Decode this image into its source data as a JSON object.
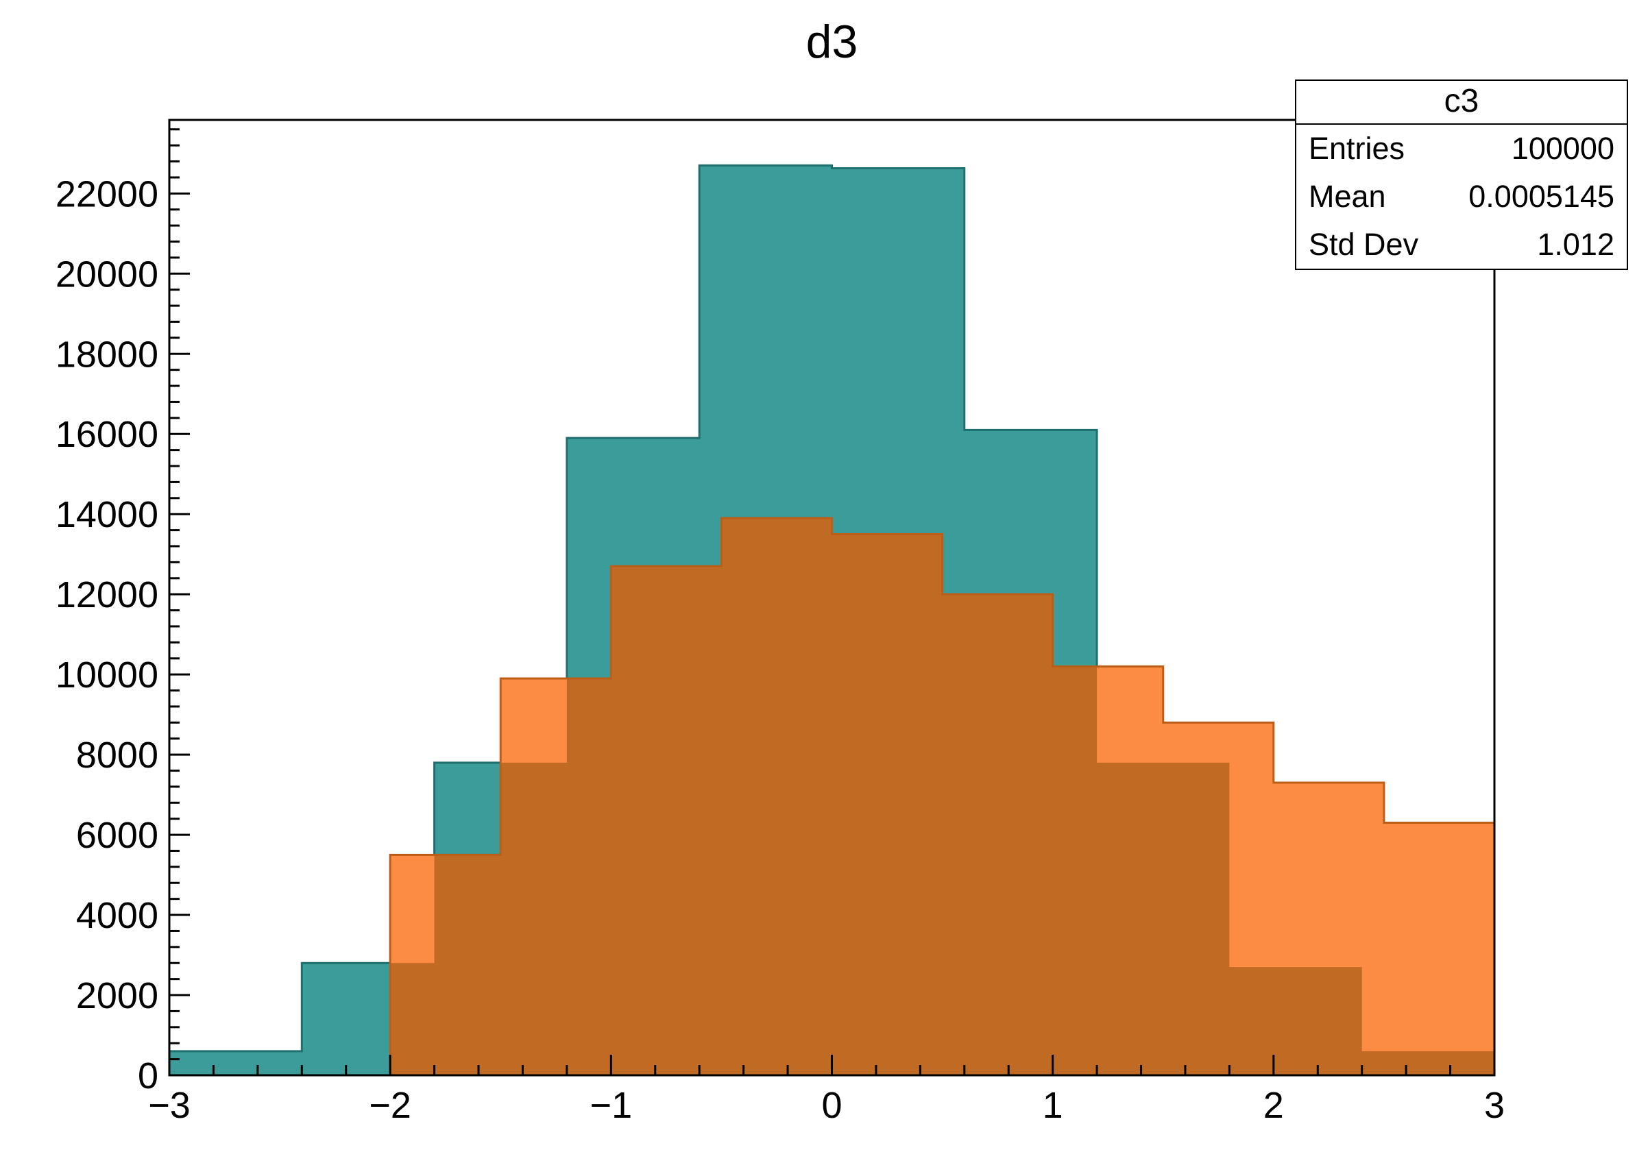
{
  "title": "d3",
  "stats": {
    "title": "c3",
    "rows": [
      {
        "label": "Entries",
        "value": "100000"
      },
      {
        "label": "Mean",
        "value": "0.0005145"
      },
      {
        "label": "Std Dev",
        "value": "1.012"
      }
    ]
  },
  "colors": {
    "teal_fill": "#3b9c99",
    "teal_stroke": "#1e6f6d",
    "orange_fill": "#fc8b43",
    "orange_stroke": "#bc5e18",
    "overlap_fill": "#c06a24",
    "axis": "#000000",
    "background": "#ffffff"
  },
  "chart_data": {
    "type": "bar",
    "subtype": "overlaid-step-histograms",
    "title": "d3",
    "xlabel": "",
    "ylabel": "",
    "xlim": [
      -3,
      3
    ],
    "ylim": [
      0,
      23835
    ],
    "grid": false,
    "legend": "none",
    "x_major_ticks": [
      -3,
      -2,
      -1,
      0,
      1,
      2,
      3
    ],
    "x_tick_labels": [
      "−3",
      "−2",
      "−1",
      "0",
      "1",
      "2",
      "3"
    ],
    "x_minor_step": 0.2,
    "y_major_step": 2000,
    "y_minor_step": 400,
    "y_tick_labels": [
      "0",
      "2000",
      "4000",
      "6000",
      "8000",
      "10000",
      "12000",
      "14000",
      "16000",
      "18000",
      "20000",
      "22000"
    ],
    "series": [
      {
        "name": "teal-histogram",
        "bin_start": -3,
        "bin_width": 0.6,
        "values": [
          600,
          2800,
          7800,
          15900,
          22700,
          22630,
          16100,
          7800,
          2700,
          600
        ],
        "color_key": "teal"
      },
      {
        "name": "orange-histogram",
        "bin_start": -3,
        "bin_width": 0.5,
        "values": [
          0,
          0,
          5500,
          9900,
          12700,
          13900,
          13500,
          12000,
          10200,
          8800,
          7300,
          6300
        ],
        "color_key": "orange"
      }
    ],
    "stats_box": {
      "title": "c3",
      "entries": 100000,
      "mean": 0.0005145,
      "std_dev": 1.012
    }
  }
}
